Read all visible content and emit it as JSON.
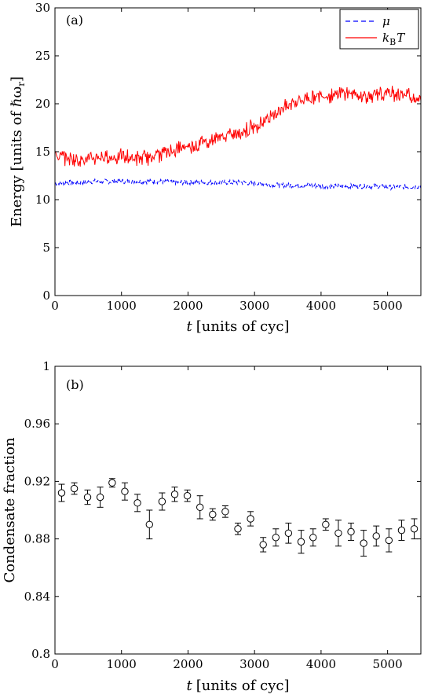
{
  "chart_data": [
    {
      "type": "line",
      "panel_label": "(a)",
      "xlabel_var": "t",
      "xlabel_rest": "[units of cyc]",
      "ylabel": "Energy [units of ℏω",
      "ylabel_sub": "r",
      "ylabel_close": "]",
      "xlim": [
        0,
        5500
      ],
      "ylim": [
        0,
        30
      ],
      "xticks": [
        "0",
        "1000",
        "2000",
        "3000",
        "4000",
        "5000"
      ],
      "yticks": [
        "0",
        "5",
        "10",
        "15",
        "20",
        "25",
        "30"
      ],
      "grid": false,
      "legend_position": "top-right",
      "legend": [
        {
          "label": "μ",
          "style": "dashed",
          "color": "#0000ff"
        },
        {
          "label": "k",
          "sub": "B",
          "after": "T",
          "style": "solid",
          "color": "#ff0000"
        }
      ],
      "series": [
        {
          "name": "μ",
          "color": "#0000ff",
          "style": "dashed",
          "x": [
            0,
            200,
            400,
            600,
            800,
            1000,
            1200,
            1400,
            1600,
            1800,
            2000,
            2200,
            2400,
            2600,
            2800,
            3000,
            3200,
            3400,
            3600,
            3800,
            4000,
            4200,
            4400,
            4600,
            4800,
            5000,
            5200,
            5500
          ],
          "values": [
            11.7,
            11.8,
            11.8,
            11.9,
            11.9,
            11.9,
            11.9,
            11.9,
            11.9,
            11.8,
            11.8,
            11.8,
            11.8,
            11.8,
            11.8,
            11.7,
            11.6,
            11.5,
            11.5,
            11.5,
            11.4,
            11.4,
            11.4,
            11.4,
            11.4,
            11.3,
            11.3,
            11.4
          ]
        },
        {
          "name": "k_B T",
          "color": "#ff0000",
          "style": "solid",
          "x": [
            0,
            200,
            400,
            600,
            800,
            1000,
            1200,
            1400,
            1600,
            1800,
            2000,
            2200,
            2400,
            2600,
            2800,
            3000,
            3200,
            3400,
            3600,
            3800,
            4000,
            4200,
            4400,
            4600,
            4800,
            5000,
            5200,
            5500
          ],
          "values": [
            14.6,
            14.3,
            14.2,
            14.3,
            14.4,
            14.5,
            14.3,
            14.4,
            14.8,
            15.2,
            15.5,
            15.9,
            16.3,
            16.7,
            17.1,
            17.6,
            18.5,
            19.5,
            20.2,
            20.6,
            20.9,
            20.9,
            21.2,
            20.8,
            20.8,
            21.1,
            21.0,
            20.5
          ]
        }
      ]
    },
    {
      "type": "scatter",
      "panel_label": "(b)",
      "xlabel_var": "t",
      "xlabel_rest": "[units of cyc]",
      "ylabel": "Condensate fraction",
      "xlim": [
        0,
        5500
      ],
      "ylim": [
        0.8,
        1.0
      ],
      "xticks": [
        "0",
        "1000",
        "2000",
        "3000",
        "4000",
        "5000"
      ],
      "yticks": [
        "0.8",
        "0.84",
        "0.88",
        "0.92",
        "0.96",
        "1"
      ],
      "grid": false,
      "marker": "open-circle",
      "x": [
        100,
        290,
        490,
        680,
        860,
        1050,
        1240,
        1420,
        1610,
        1800,
        1990,
        2180,
        2370,
        2560,
        2750,
        2940,
        3130,
        3320,
        3510,
        3700,
        3880,
        4070,
        4260,
        4450,
        4640,
        4830,
        5020,
        5210,
        5400
      ],
      "values": [
        0.912,
        0.915,
        0.909,
        0.909,
        0.919,
        0.913,
        0.905,
        0.89,
        0.906,
        0.911,
        0.91,
        0.902,
        0.897,
        0.899,
        0.887,
        0.894,
        0.876,
        0.881,
        0.884,
        0.878,
        0.881,
        0.89,
        0.884,
        0.885,
        0.877,
        0.882,
        0.879,
        0.886,
        0.887
      ],
      "error": [
        0.006,
        0.004,
        0.005,
        0.007,
        0.003,
        0.006,
        0.006,
        0.01,
        0.006,
        0.005,
        0.004,
        0.008,
        0.004,
        0.004,
        0.004,
        0.005,
        0.005,
        0.006,
        0.007,
        0.008,
        0.006,
        0.004,
        0.009,
        0.006,
        0.009,
        0.007,
        0.008,
        0.007,
        0.007
      ]
    }
  ]
}
